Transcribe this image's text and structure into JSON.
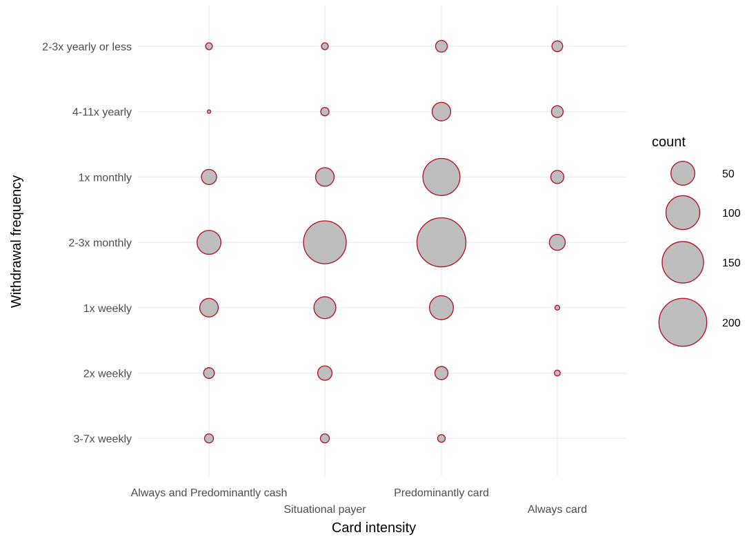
{
  "chart_data": {
    "type": "scatter",
    "subtype": "bubble",
    "xlabel": "Card intensity",
    "ylabel": "Withdrawal frequency",
    "x_categories": [
      "Always and Predominantly cash",
      "Situational payer",
      "Predominantly card",
      "Always card"
    ],
    "y_categories": [
      "2-3x yearly or less",
      "4-11x yearly",
      "1x monthly",
      "2-3x monthly",
      "1x weekly",
      "2x weekly",
      "3-7x weekly"
    ],
    "size_variable": "count",
    "points": [
      {
        "x": "Always and Predominantly cash",
        "y": "2-3x yearly or less",
        "count": 4
      },
      {
        "x": "Situational payer",
        "y": "2-3x yearly or less",
        "count": 4
      },
      {
        "x": "Predominantly card",
        "y": "2-3x yearly or less",
        "count": 12
      },
      {
        "x": "Always card",
        "y": "2-3x yearly or less",
        "count": 10
      },
      {
        "x": "Always and Predominantly cash",
        "y": "4-11x yearly",
        "count": 1
      },
      {
        "x": "Situational payer",
        "y": "4-11x yearly",
        "count": 6
      },
      {
        "x": "Predominantly card",
        "y": "4-11x yearly",
        "count": 30
      },
      {
        "x": "Always card",
        "y": "4-11x yearly",
        "count": 12
      },
      {
        "x": "Always and Predominantly cash",
        "y": "1x monthly",
        "count": 20
      },
      {
        "x": "Situational payer",
        "y": "1x monthly",
        "count": 30
      },
      {
        "x": "Predominantly card",
        "y": "1x monthly",
        "count": 120
      },
      {
        "x": "Always card",
        "y": "1x monthly",
        "count": 15
      },
      {
        "x": "Always and Predominantly cash",
        "y": "2-3x monthly",
        "count": 50
      },
      {
        "x": "Situational payer",
        "y": "2-3x monthly",
        "count": 160
      },
      {
        "x": "Predominantly card",
        "y": "2-3x monthly",
        "count": 210
      },
      {
        "x": "Always card",
        "y": "2-3x monthly",
        "count": 22
      },
      {
        "x": "Always and Predominantly cash",
        "y": "1x weekly",
        "count": 30
      },
      {
        "x": "Situational payer",
        "y": "1x weekly",
        "count": 42
      },
      {
        "x": "Predominantly card",
        "y": "1x weekly",
        "count": 50
      },
      {
        "x": "Always card",
        "y": "1x weekly",
        "count": 2
      },
      {
        "x": "Always and Predominantly cash",
        "y": "2x weekly",
        "count": 10
      },
      {
        "x": "Situational payer",
        "y": "2x weekly",
        "count": 18
      },
      {
        "x": "Predominantly card",
        "y": "2x weekly",
        "count": 15
      },
      {
        "x": "Always card",
        "y": "2x weekly",
        "count": 3
      },
      {
        "x": "Always and Predominantly cash",
        "y": "3-7x weekly",
        "count": 7
      },
      {
        "x": "Situational payer",
        "y": "3-7x weekly",
        "count": 7
      },
      {
        "x": "Predominantly card",
        "y": "3-7x weekly",
        "count": 5
      },
      {
        "x": "Always card",
        "y": "3-7x weekly",
        "count": 0
      }
    ],
    "legend": {
      "title": "count",
      "values": [
        50,
        100,
        150,
        200
      ],
      "placement": "right"
    },
    "grid": true,
    "colors": {
      "fill": "#bebebe",
      "stroke": "#b2182b",
      "grid": "#ebebeb"
    }
  }
}
